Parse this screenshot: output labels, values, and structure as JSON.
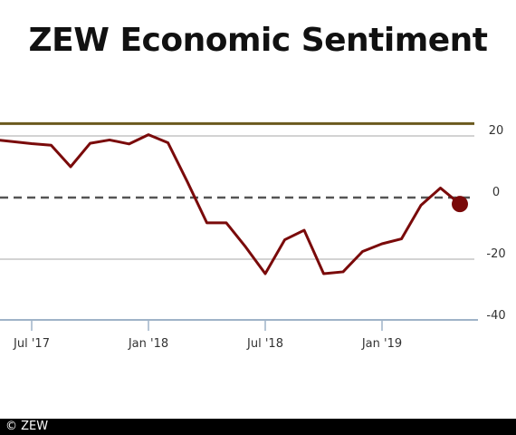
{
  "title": "ZEW Economic Sentiment",
  "credit": "© ZEW",
  "colors": {
    "line": "#7a0a0a",
    "upper_band": "#6b5a1e",
    "zero_line": "#555555",
    "grid": "#b9b9b9",
    "axis": "#9fb3c8"
  },
  "chart_data": {
    "type": "line",
    "title": "ZEW Economic Sentiment",
    "xlabel": "",
    "ylabel": "",
    "ylim": [
      -40,
      25
    ],
    "grid": true,
    "reference_lines": [
      {
        "y": 24,
        "style": "solid",
        "color": "#6b5a1e"
      },
      {
        "y": 0,
        "style": "dashed",
        "color": "#555555"
      }
    ],
    "y_ticks": [
      20,
      0,
      -20,
      -40
    ],
    "y_tick_labels": [
      "20",
      "0",
      "-20",
      "-40"
    ],
    "x_ticks": [
      "2017-07",
      "2018-01",
      "2018-07",
      "2019-01"
    ],
    "x_tick_labels": [
      "Jul '17",
      "Jan '18",
      "Jul '18",
      "Jan '19"
    ],
    "series": [
      {
        "x": [
          "2017-06",
          "2017-07",
          "2017-08",
          "2017-09",
          "2017-10",
          "2017-11",
          "2017-12",
          "2018-01",
          "2018-02",
          "2018-03",
          "2018-04",
          "2018-05",
          "2018-06",
          "2018-07",
          "2018-08",
          "2018-09",
          "2018-10",
          "2018-11",
          "2018-12",
          "2019-01",
          "2019-02",
          "2019-03",
          "2019-04",
          "2019-05"
        ],
        "values": [
          18.6,
          17.5,
          17.0,
          10.0,
          17.6,
          18.7,
          17.4,
          20.4,
          17.8,
          5.1,
          -8.2,
          -8.2,
          -16.1,
          -24.7,
          -13.7,
          -10.6,
          -24.7,
          -24.1,
          -17.5,
          -15.0,
          -13.4,
          -2.5,
          3.1,
          -2.1
        ],
        "end_marker": true
      }
    ]
  }
}
